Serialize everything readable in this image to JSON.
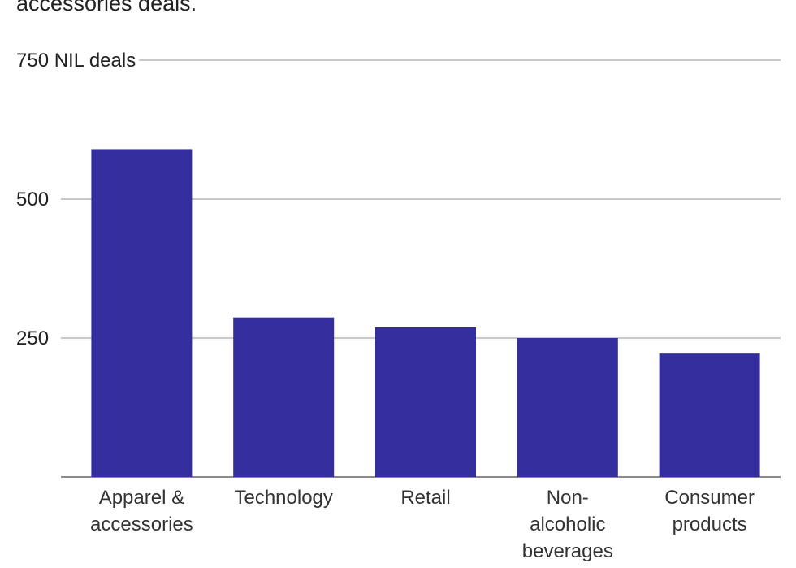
{
  "caption": "accessories deals.",
  "chart_data": {
    "type": "bar",
    "categories": [
      [
        "Apparel &",
        "accessories"
      ],
      [
        "Technology"
      ],
      [
        "Retail"
      ],
      [
        "Non-",
        "alcoholic",
        "beverages"
      ],
      [
        "Consumer",
        "products"
      ]
    ],
    "values": [
      590,
      287,
      269,
      250,
      222
    ],
    "ylim": [
      0,
      750
    ],
    "yticks": [
      {
        "value": 250,
        "label": "250"
      },
      {
        "value": 500,
        "label": "500"
      },
      {
        "value": 750,
        "label": "750 NIL deals"
      }
    ],
    "bar_color": "#332d9e",
    "grid_color": "#b5b5b5",
    "baseline_color": "#8a8a8a",
    "grid": true,
    "legend": "none"
  }
}
